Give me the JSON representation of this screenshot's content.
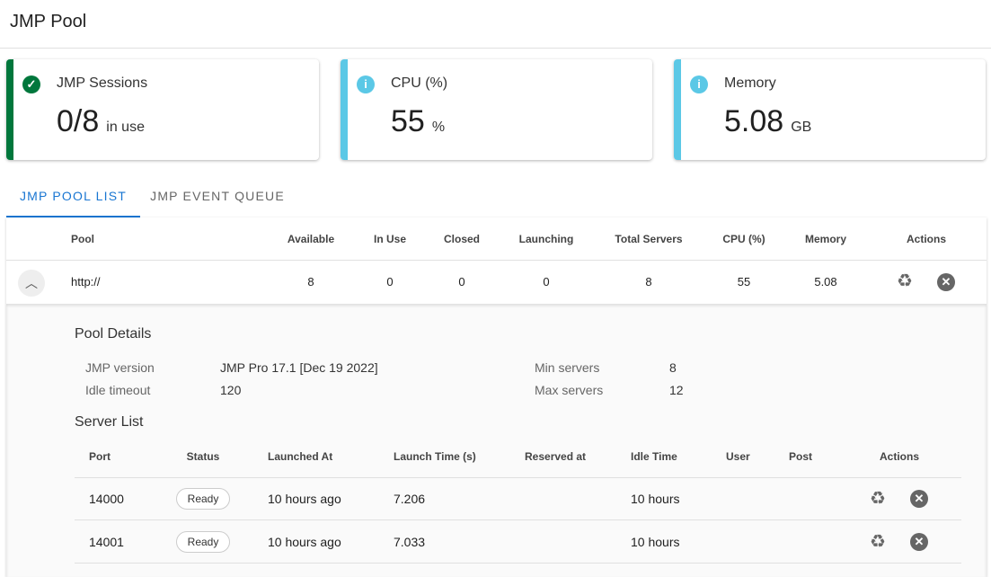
{
  "header": {
    "title": "JMP Pool"
  },
  "cards": [
    {
      "label": "JMP Sessions",
      "value": "0/8",
      "unit": "in use",
      "icon": "check-circle-icon",
      "color": "#00773c"
    },
    {
      "label": "CPU (%)",
      "value": "55",
      "unit": "%",
      "icon": "info-icon",
      "color": "#5bc8e6"
    },
    {
      "label": "Memory",
      "value": "5.08",
      "unit": "GB",
      "icon": "info-icon",
      "color": "#5bc8e6"
    }
  ],
  "tabs": [
    {
      "label": "JMP POOL LIST",
      "active": true
    },
    {
      "label": "JMP EVENT QUEUE",
      "active": false
    }
  ],
  "pool_table": {
    "columns": [
      "Pool",
      "Available",
      "In Use",
      "Closed",
      "Launching",
      "Total Servers",
      "CPU (%)",
      "Memory",
      "Actions"
    ],
    "rows": [
      {
        "pool": "http://",
        "available": "8",
        "in_use": "0",
        "closed": "0",
        "launching": "0",
        "total_servers": "8",
        "cpu": "55",
        "memory": "5.08",
        "expanded": true
      }
    ]
  },
  "pool_details": {
    "title": "Pool Details",
    "jmp_version_label": "JMP version",
    "jmp_version": "JMP Pro 17.1 [Dec 19 2022]",
    "idle_timeout_label": "Idle timeout",
    "idle_timeout": "120",
    "min_servers_label": "Min servers",
    "min_servers": "8",
    "max_servers_label": "Max servers",
    "max_servers": "12"
  },
  "server_list": {
    "title": "Server List",
    "columns": [
      "Port",
      "Status",
      "Launched At",
      "Launch Time (s)",
      "Reserved at",
      "Idle Time",
      "User",
      "Post",
      "Actions"
    ],
    "rows": [
      {
        "port": "14000",
        "status": "Ready",
        "launched_at": "10 hours ago",
        "launch_time": "7.206",
        "reserved_at": "",
        "idle_time": "10 hours",
        "user": "",
        "post": ""
      },
      {
        "port": "14001",
        "status": "Ready",
        "launched_at": "10 hours ago",
        "launch_time": "7.033",
        "reserved_at": "",
        "idle_time": "10 hours",
        "user": "",
        "post": ""
      }
    ]
  }
}
